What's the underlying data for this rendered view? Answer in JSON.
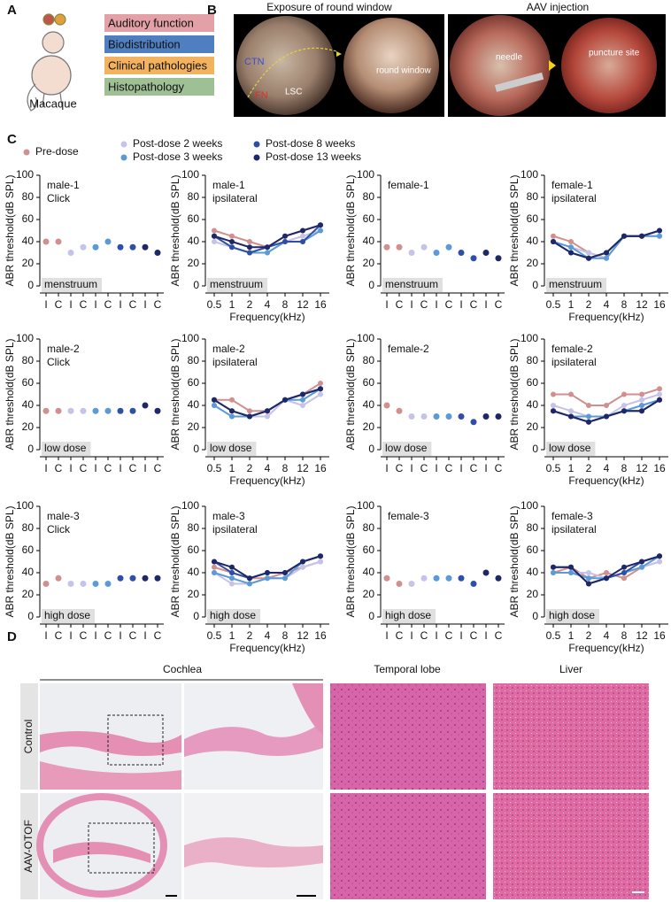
{
  "panel_a": {
    "label": "A",
    "categories": [
      "Auditory function",
      "Biodistribution",
      "Clinical pathologies",
      "Histopathology"
    ],
    "colors": [
      "#e3a1a7",
      "#4f7fc0",
      "#f3b25e",
      "#9fbf94"
    ],
    "species": "Macaque"
  },
  "panel_b": {
    "label": "B",
    "titles": [
      "Exposure of round window",
      "AAV injection"
    ],
    "annotations": [
      "CTN",
      "FN",
      "LSC",
      "round window",
      "needle",
      "puncture site"
    ]
  },
  "panel_c": {
    "label": "C"
  },
  "legend": [
    {
      "name": "Pre-dose",
      "color": "#d0908f"
    },
    {
      "name": "Post-dose 2 weeks",
      "color": "#c5c3e8"
    },
    {
      "name": "Post-dose 3 weeks",
      "color": "#5b9ad6"
    },
    {
      "name": "Post-dose 8 weeks",
      "color": "#2f4ea6"
    },
    {
      "name": "Post-dose 13 weeks",
      "color": "#1e2767"
    }
  ],
  "chart_data": [
    {
      "type": "strip",
      "title": "male-1",
      "subtitle": "Click",
      "annotation": "menstruum",
      "y_label": "ABR threshold(dB SPL)",
      "categories": [
        "I",
        "C",
        "I",
        "C",
        "I",
        "C",
        "I",
        "C",
        "I",
        "C"
      ],
      "ylim": [
        0,
        100
      ],
      "yticks": [
        0,
        20,
        40,
        60,
        80,
        100
      ],
      "series": [
        {
          "values": [
            40,
            40,
            null,
            null,
            null,
            null,
            null,
            null,
            null,
            null
          ]
        },
        {
          "values": [
            null,
            null,
            30,
            35,
            null,
            null,
            null,
            null,
            null,
            null
          ]
        },
        {
          "values": [
            null,
            null,
            null,
            null,
            35,
            40,
            null,
            null,
            null,
            null
          ]
        },
        {
          "values": [
            null,
            null,
            null,
            null,
            null,
            null,
            35,
            35,
            null,
            null
          ]
        },
        {
          "values": [
            null,
            null,
            null,
            null,
            null,
            null,
            null,
            null,
            35,
            30
          ]
        }
      ]
    },
    {
      "type": "line",
      "title": "male-1",
      "subtitle": "ipsilateral",
      "annotation": "menstruum",
      "y_label": "ABR threshold(dB SPL)",
      "x_label": "Frequency(kHz)",
      "categories": [
        "0.5",
        "1",
        "2",
        "4",
        "8",
        "12",
        "16"
      ],
      "ylim": [
        0,
        100
      ],
      "yticks": [
        0,
        20,
        40,
        60,
        80,
        100
      ],
      "series": [
        {
          "values": [
            50,
            45,
            40,
            35,
            45,
            50,
            55
          ]
        },
        {
          "values": [
            40,
            35,
            30,
            30,
            40,
            45,
            50
          ]
        },
        {
          "values": [
            45,
            35,
            30,
            30,
            40,
            40,
            50
          ]
        },
        {
          "values": [
            45,
            35,
            30,
            35,
            40,
            40,
            55
          ]
        },
        {
          "values": [
            45,
            40,
            35,
            35,
            45,
            50,
            55
          ]
        }
      ]
    },
    {
      "type": "strip",
      "title": "female-1",
      "annotation": "menstruum",
      "y_label": "ABR threshold(dB SPL)",
      "categories": [
        "I",
        "C",
        "I",
        "C",
        "I",
        "C",
        "I",
        "C",
        "I",
        "C"
      ],
      "ylim": [
        0,
        100
      ],
      "yticks": [
        0,
        20,
        40,
        60,
        80,
        100
      ],
      "series": [
        {
          "values": [
            35,
            35,
            null,
            null,
            null,
            null,
            null,
            null,
            null,
            null
          ]
        },
        {
          "values": [
            null,
            null,
            30,
            35,
            null,
            null,
            null,
            null,
            null,
            null
          ]
        },
        {
          "values": [
            null,
            null,
            null,
            null,
            30,
            35,
            null,
            null,
            null,
            null
          ]
        },
        {
          "values": [
            null,
            null,
            null,
            null,
            null,
            null,
            30,
            25,
            null,
            null
          ]
        },
        {
          "values": [
            null,
            null,
            null,
            null,
            null,
            null,
            null,
            null,
            30,
            25
          ]
        }
      ]
    },
    {
      "type": "line",
      "title": "female-1",
      "subtitle": "ipsilateral",
      "annotation": "menstruum",
      "y_label": "ABR threshold(dB SPL)",
      "x_label": "Frequency(kHz)",
      "categories": [
        "0.5",
        "1",
        "2",
        "4",
        "8",
        "12",
        "16"
      ],
      "ylim": [
        0,
        100
      ],
      "yticks": [
        0,
        20,
        40,
        60,
        80,
        100
      ],
      "series": [
        {
          "values": [
            45,
            40,
            30,
            25,
            45,
            45,
            45
          ]
        },
        {
          "values": [
            40,
            35,
            30,
            25,
            45,
            45,
            45
          ]
        },
        {
          "values": [
            40,
            35,
            25,
            25,
            45,
            45,
            45
          ]
        },
        {
          "values": [
            40,
            30,
            25,
            30,
            45,
            45,
            50
          ]
        },
        {
          "values": [
            40,
            30,
            25,
            30,
            45,
            45,
            50
          ]
        }
      ]
    },
    {
      "type": "strip",
      "title": "male-2",
      "subtitle": "Click",
      "annotation": "low dose",
      "y_label": "ABR threshold(dB SPL)",
      "categories": [
        "I",
        "C",
        "I",
        "C",
        "I",
        "C",
        "I",
        "C",
        "I",
        "C"
      ],
      "ylim": [
        0,
        100
      ],
      "yticks": [
        0,
        20,
        40,
        60,
        80,
        100
      ],
      "series": [
        {
          "values": [
            35,
            35,
            null,
            null,
            null,
            null,
            null,
            null,
            null,
            null
          ]
        },
        {
          "values": [
            null,
            null,
            35,
            35,
            null,
            null,
            null,
            null,
            null,
            null
          ]
        },
        {
          "values": [
            null,
            null,
            null,
            null,
            35,
            35,
            null,
            null,
            null,
            null
          ]
        },
        {
          "values": [
            null,
            null,
            null,
            null,
            null,
            null,
            35,
            35,
            null,
            null
          ]
        },
        {
          "values": [
            null,
            null,
            null,
            null,
            null,
            null,
            null,
            null,
            40,
            35
          ]
        }
      ]
    },
    {
      "type": "line",
      "title": "male-2",
      "subtitle": "ipsilateral",
      "annotation": "low dose",
      "y_label": "ABR threshold(dB SPL)",
      "x_label": "Frequency(kHz)",
      "categories": [
        "0.5",
        "1",
        "2",
        "4",
        "8",
        "12",
        "16"
      ],
      "ylim": [
        0,
        100
      ],
      "yticks": [
        0,
        20,
        40,
        60,
        80,
        100
      ],
      "series": [
        {
          "values": [
            45,
            45,
            35,
            35,
            45,
            50,
            60
          ]
        },
        {
          "values": [
            40,
            30,
            30,
            30,
            45,
            40,
            50
          ]
        },
        {
          "values": [
            40,
            30,
            30,
            35,
            45,
            45,
            55
          ]
        },
        {
          "values": [
            45,
            35,
            30,
            35,
            45,
            50,
            55
          ]
        },
        {
          "values": [
            45,
            35,
            30,
            35,
            45,
            50,
            55
          ]
        }
      ]
    },
    {
      "type": "strip",
      "title": "female-2",
      "annotation": "low dose",
      "y_label": "ABR threshold(dB SPL)",
      "categories": [
        "I",
        "C",
        "I",
        "C",
        "I",
        "C",
        "I",
        "C",
        "I",
        "C"
      ],
      "ylim": [
        0,
        100
      ],
      "yticks": [
        0,
        20,
        40,
        60,
        80,
        100
      ],
      "series": [
        {
          "values": [
            40,
            35,
            null,
            null,
            null,
            null,
            null,
            null,
            null,
            null
          ]
        },
        {
          "values": [
            null,
            null,
            30,
            30,
            null,
            null,
            null,
            null,
            null,
            null
          ]
        },
        {
          "values": [
            null,
            null,
            null,
            null,
            30,
            30,
            null,
            null,
            null,
            null
          ]
        },
        {
          "values": [
            null,
            null,
            null,
            null,
            null,
            null,
            30,
            25,
            null,
            null
          ]
        },
        {
          "values": [
            null,
            null,
            null,
            null,
            null,
            null,
            null,
            null,
            30,
            30
          ]
        }
      ]
    },
    {
      "type": "line",
      "title": "female-2",
      "subtitle": "ipsilateral",
      "annotation": "low dose",
      "y_label": "ABR threshold(dB SPL)",
      "x_label": "Frequency(kHz)",
      "categories": [
        "0.5",
        "1",
        "2",
        "4",
        "8",
        "12",
        "16"
      ],
      "ylim": [
        0,
        100
      ],
      "yticks": [
        0,
        20,
        40,
        60,
        80,
        100
      ],
      "series": [
        {
          "values": [
            50,
            50,
            40,
            40,
            50,
            50,
            55
          ]
        },
        {
          "values": [
            40,
            35,
            30,
            30,
            40,
            45,
            50
          ]
        },
        {
          "values": [
            35,
            30,
            30,
            30,
            35,
            40,
            45
          ]
        },
        {
          "values": [
            35,
            30,
            25,
            30,
            35,
            35,
            45
          ]
        },
        {
          "values": [
            35,
            30,
            25,
            30,
            35,
            35,
            45
          ]
        }
      ]
    },
    {
      "type": "strip",
      "title": "male-3",
      "subtitle": "Click",
      "annotation": "high dose",
      "y_label": "ABR threshold(dB SPL)",
      "categories": [
        "I",
        "C",
        "I",
        "C",
        "I",
        "C",
        "I",
        "C",
        "I",
        "C"
      ],
      "ylim": [
        0,
        100
      ],
      "yticks": [
        0,
        20,
        40,
        60,
        80,
        100
      ],
      "series": [
        {
          "values": [
            30,
            35,
            null,
            null,
            null,
            null,
            null,
            null,
            null,
            null
          ]
        },
        {
          "values": [
            null,
            null,
            30,
            30,
            null,
            null,
            null,
            null,
            null,
            null
          ]
        },
        {
          "values": [
            null,
            null,
            null,
            null,
            30,
            30,
            null,
            null,
            null,
            null
          ]
        },
        {
          "values": [
            null,
            null,
            null,
            null,
            null,
            null,
            35,
            35,
            null,
            null
          ]
        },
        {
          "values": [
            null,
            null,
            null,
            null,
            null,
            null,
            null,
            null,
            35,
            35
          ]
        }
      ]
    },
    {
      "type": "line",
      "title": "male-3",
      "subtitle": "ipsilateral",
      "annotation": "high dose",
      "y_label": "ABR threshold(dB SPL)",
      "x_label": "Frequency(kHz)",
      "categories": [
        "0.5",
        "1",
        "2",
        "4",
        "8",
        "12",
        "16"
      ],
      "ylim": [
        0,
        100
      ],
      "yticks": [
        0,
        20,
        40,
        60,
        80,
        100
      ],
      "series": [
        {
          "values": [
            45,
            40,
            35,
            35,
            40,
            45,
            50
          ]
        },
        {
          "values": [
            40,
            30,
            30,
            35,
            35,
            45,
            50
          ]
        },
        {
          "values": [
            40,
            35,
            30,
            35,
            35,
            50,
            55
          ]
        },
        {
          "values": [
            50,
            40,
            35,
            40,
            40,
            50,
            55
          ]
        },
        {
          "values": [
            50,
            45,
            35,
            40,
            40,
            50,
            55
          ]
        }
      ]
    },
    {
      "type": "strip",
      "title": "female-3",
      "annotation": "high dose",
      "y_label": "ABR threshold(dB SPL)",
      "categories": [
        "I",
        "C",
        "I",
        "C",
        "I",
        "C",
        "I",
        "C",
        "I",
        "C"
      ],
      "ylim": [
        0,
        100
      ],
      "yticks": [
        0,
        20,
        40,
        60,
        80,
        100
      ],
      "series": [
        {
          "values": [
            35,
            30,
            null,
            null,
            null,
            null,
            null,
            null,
            null,
            null
          ]
        },
        {
          "values": [
            null,
            null,
            30,
            35,
            null,
            null,
            null,
            null,
            null,
            null
          ]
        },
        {
          "values": [
            null,
            null,
            null,
            null,
            35,
            35,
            null,
            null,
            null,
            null
          ]
        },
        {
          "values": [
            null,
            null,
            null,
            null,
            null,
            null,
            35,
            30,
            null,
            null
          ]
        },
        {
          "values": [
            null,
            null,
            null,
            null,
            null,
            null,
            null,
            null,
            40,
            35
          ]
        }
      ]
    },
    {
      "type": "line",
      "title": "female-3",
      "subtitle": "ipsilateral",
      "annotation": "high dose",
      "y_label": "ABR threshold(dB SPL)",
      "x_label": "Frequency(kHz)",
      "categories": [
        "0.5",
        "1",
        "2",
        "4",
        "8",
        "12",
        "16"
      ],
      "ylim": [
        0,
        100
      ],
      "yticks": [
        0,
        20,
        40,
        60,
        80,
        100
      ],
      "series": [
        {
          "values": [
            40,
            45,
            35,
            40,
            35,
            45,
            50
          ]
        },
        {
          "values": [
            40,
            40,
            40,
            35,
            40,
            45,
            50
          ]
        },
        {
          "values": [
            40,
            40,
            35,
            35,
            40,
            45,
            55
          ]
        },
        {
          "values": [
            45,
            45,
            30,
            35,
            40,
            50,
            55
          ]
        },
        {
          "values": [
            45,
            45,
            30,
            35,
            45,
            50,
            55
          ]
        }
      ]
    }
  ],
  "panel_d": {
    "label": "D",
    "columns": [
      "Cochlea",
      "Temporal lobe",
      "Liver"
    ],
    "rows": [
      "Control",
      "AAV-OTOF"
    ]
  }
}
